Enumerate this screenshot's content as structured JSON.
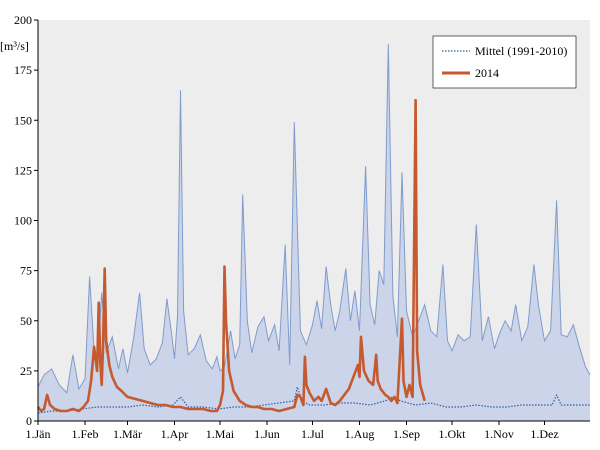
{
  "chart_data": {
    "type": "area",
    "ylabel": "[m³/s]",
    "ylim": [
      0,
      200
    ],
    "yticks": [
      0,
      25,
      50,
      75,
      100,
      125,
      150,
      175,
      200
    ],
    "xlim": [
      1,
      365
    ],
    "xticks": [
      {
        "label": "1.Jän",
        "day": 1
      },
      {
        "label": "1.Feb",
        "day": 32
      },
      {
        "label": "1.Mär",
        "day": 60
      },
      {
        "label": "1.Apr",
        "day": 91
      },
      {
        "label": "1.Mai",
        "day": 121
      },
      {
        "label": "1.Jun",
        "day": 152
      },
      {
        "label": "1.Jul",
        "day": 182
      },
      {
        "label": "1.Aug",
        "day": 213
      },
      {
        "label": "1.Sep",
        "day": 244
      },
      {
        "label": "1.Okt",
        "day": 274
      },
      {
        "label": "1.Nov",
        "day": 305
      },
      {
        "label": "1.Dez",
        "day": 335
      }
    ],
    "grid": false,
    "legend_position": "top-right",
    "band": {
      "fill": "#c5cfe8",
      "line": "#7e9ccc",
      "points": [
        [
          1,
          17
        ],
        [
          5,
          23
        ],
        [
          10,
          26
        ],
        [
          15,
          18
        ],
        [
          20,
          14
        ],
        [
          24,
          33
        ],
        [
          28,
          16
        ],
        [
          32,
          21
        ],
        [
          35,
          72
        ],
        [
          38,
          35
        ],
        [
          40,
          30
        ],
        [
          43,
          64
        ],
        [
          46,
          34
        ],
        [
          50,
          42
        ],
        [
          54,
          26
        ],
        [
          57,
          36
        ],
        [
          60,
          24
        ],
        [
          64,
          41
        ],
        [
          68,
          64
        ],
        [
          71,
          36
        ],
        [
          75,
          28
        ],
        [
          79,
          31
        ],
        [
          83,
          39
        ],
        [
          86,
          61
        ],
        [
          89,
          44
        ],
        [
          91,
          31
        ],
        [
          93,
          52
        ],
        [
          95,
          165
        ],
        [
          97,
          55
        ],
        [
          100,
          33
        ],
        [
          104,
          36
        ],
        [
          108,
          43
        ],
        [
          112,
          30
        ],
        [
          116,
          26
        ],
        [
          119,
          32
        ],
        [
          121,
          25
        ],
        [
          124,
          27
        ],
        [
          128,
          45
        ],
        [
          131,
          31
        ],
        [
          134,
          38
        ],
        [
          136,
          113
        ],
        [
          139,
          50
        ],
        [
          142,
          34
        ],
        [
          146,
          47
        ],
        [
          150,
          52
        ],
        [
          153,
          40
        ],
        [
          157,
          48
        ],
        [
          160,
          35
        ],
        [
          164,
          88
        ],
        [
          167,
          28
        ],
        [
          170,
          149
        ],
        [
          174,
          45
        ],
        [
          178,
          38
        ],
        [
          182,
          48
        ],
        [
          185,
          60
        ],
        [
          188,
          46
        ],
        [
          191,
          77
        ],
        [
          194,
          58
        ],
        [
          197,
          45
        ],
        [
          200,
          55
        ],
        [
          204,
          76
        ],
        [
          207,
          50
        ],
        [
          210,
          65
        ],
        [
          213,
          45
        ],
        [
          217,
          127
        ],
        [
          220,
          58
        ],
        [
          223,
          48
        ],
        [
          226,
          75
        ],
        [
          229,
          68
        ],
        [
          232,
          188
        ],
        [
          235,
          62
        ],
        [
          238,
          42
        ],
        [
          241,
          124
        ],
        [
          244,
          55
        ],
        [
          248,
          42
        ],
        [
          252,
          50
        ],
        [
          256,
          58
        ],
        [
          260,
          45
        ],
        [
          264,
          42
        ],
        [
          268,
          78
        ],
        [
          271,
          40
        ],
        [
          274,
          35
        ],
        [
          278,
          43
        ],
        [
          282,
          40
        ],
        [
          286,
          42
        ],
        [
          290,
          98
        ],
        [
          294,
          40
        ],
        [
          298,
          52
        ],
        [
          302,
          36
        ],
        [
          305,
          43
        ],
        [
          309,
          50
        ],
        [
          313,
          45
        ],
        [
          316,
          58
        ],
        [
          320,
          40
        ],
        [
          324,
          47
        ],
        [
          328,
          78
        ],
        [
          331,
          58
        ],
        [
          335,
          40
        ],
        [
          339,
          45
        ],
        [
          343,
          110
        ],
        [
          346,
          43
        ],
        [
          350,
          42
        ],
        [
          354,
          48
        ],
        [
          358,
          37
        ],
        [
          362,
          27
        ],
        [
          365,
          23
        ]
      ]
    },
    "series": [
      {
        "name": "Mittel (1991-2010)",
        "color": "#2e5ca8",
        "style": "dotted",
        "points": [
          [
            1,
            4
          ],
          [
            10,
            5
          ],
          [
            20,
            5
          ],
          [
            30,
            6
          ],
          [
            40,
            7
          ],
          [
            50,
            7
          ],
          [
            60,
            7
          ],
          [
            70,
            8
          ],
          [
            80,
            7
          ],
          [
            90,
            8
          ],
          [
            95,
            12
          ],
          [
            100,
            7
          ],
          [
            110,
            7
          ],
          [
            120,
            6
          ],
          [
            130,
            7
          ],
          [
            140,
            7
          ],
          [
            150,
            8
          ],
          [
            160,
            9
          ],
          [
            170,
            10
          ],
          [
            172,
            17
          ],
          [
            175,
            10
          ],
          [
            180,
            8
          ],
          [
            190,
            8
          ],
          [
            200,
            9
          ],
          [
            210,
            9
          ],
          [
            220,
            8
          ],
          [
            230,
            10
          ],
          [
            235,
            12
          ],
          [
            240,
            10
          ],
          [
            250,
            8
          ],
          [
            260,
            9
          ],
          [
            270,
            7
          ],
          [
            280,
            7
          ],
          [
            290,
            8
          ],
          [
            300,
            7
          ],
          [
            310,
            7
          ],
          [
            320,
            8
          ],
          [
            330,
            8
          ],
          [
            340,
            8
          ],
          [
            343,
            13
          ],
          [
            346,
            8
          ],
          [
            355,
            8
          ],
          [
            365,
            8
          ]
        ]
      },
      {
        "name": "2014",
        "color": "#c55a30",
        "style": "solid",
        "points": [
          [
            1,
            7
          ],
          [
            3,
            5
          ],
          [
            5,
            6
          ],
          [
            7,
            13
          ],
          [
            9,
            8
          ],
          [
            12,
            6
          ],
          [
            16,
            5
          ],
          [
            20,
            5
          ],
          [
            24,
            6
          ],
          [
            28,
            5
          ],
          [
            31,
            7
          ],
          [
            34,
            10
          ],
          [
            36,
            20
          ],
          [
            38,
            37
          ],
          [
            40,
            25
          ],
          [
            41,
            59
          ],
          [
            42,
            30
          ],
          [
            43,
            18
          ],
          [
            44,
            40
          ],
          [
            45,
            76
          ],
          [
            46,
            40
          ],
          [
            48,
            28
          ],
          [
            50,
            22
          ],
          [
            53,
            17
          ],
          [
            56,
            15
          ],
          [
            60,
            12
          ],
          [
            65,
            11
          ],
          [
            70,
            10
          ],
          [
            75,
            9
          ],
          [
            80,
            8
          ],
          [
            85,
            8
          ],
          [
            90,
            7
          ],
          [
            95,
            7
          ],
          [
            100,
            6
          ],
          [
            105,
            6
          ],
          [
            110,
            6
          ],
          [
            115,
            5
          ],
          [
            119,
            5
          ],
          [
            121,
            8
          ],
          [
            123,
            15
          ],
          [
            124,
            77
          ],
          [
            125,
            50
          ],
          [
            127,
            25
          ],
          [
            130,
            15
          ],
          [
            134,
            10
          ],
          [
            138,
            8
          ],
          [
            142,
            7
          ],
          [
            146,
            7
          ],
          [
            150,
            6
          ],
          [
            155,
            6
          ],
          [
            160,
            5
          ],
          [
            165,
            6
          ],
          [
            170,
            7
          ],
          [
            172,
            13
          ],
          [
            174,
            12
          ],
          [
            176,
            8
          ],
          [
            177,
            32
          ],
          [
            178,
            18
          ],
          [
            180,
            14
          ],
          [
            183,
            10
          ],
          [
            186,
            12
          ],
          [
            188,
            10
          ],
          [
            191,
            16
          ],
          [
            194,
            9
          ],
          [
            197,
            8
          ],
          [
            200,
            10
          ],
          [
            203,
            13
          ],
          [
            206,
            16
          ],
          [
            208,
            20
          ],
          [
            210,
            24
          ],
          [
            212,
            28
          ],
          [
            213,
            22
          ],
          [
            214,
            42
          ],
          [
            216,
            25
          ],
          [
            219,
            20
          ],
          [
            222,
            18
          ],
          [
            224,
            33
          ],
          [
            225,
            20
          ],
          [
            227,
            16
          ],
          [
            230,
            13
          ],
          [
            232,
            12
          ],
          [
            234,
            10
          ],
          [
            236,
            12
          ],
          [
            238,
            9
          ],
          [
            241,
            51
          ],
          [
            242,
            20
          ],
          [
            244,
            12
          ],
          [
            246,
            18
          ],
          [
            248,
            12
          ],
          [
            250,
            160
          ],
          [
            251,
            35
          ],
          [
            253,
            18
          ],
          [
            256,
            10
          ]
        ]
      }
    ]
  }
}
